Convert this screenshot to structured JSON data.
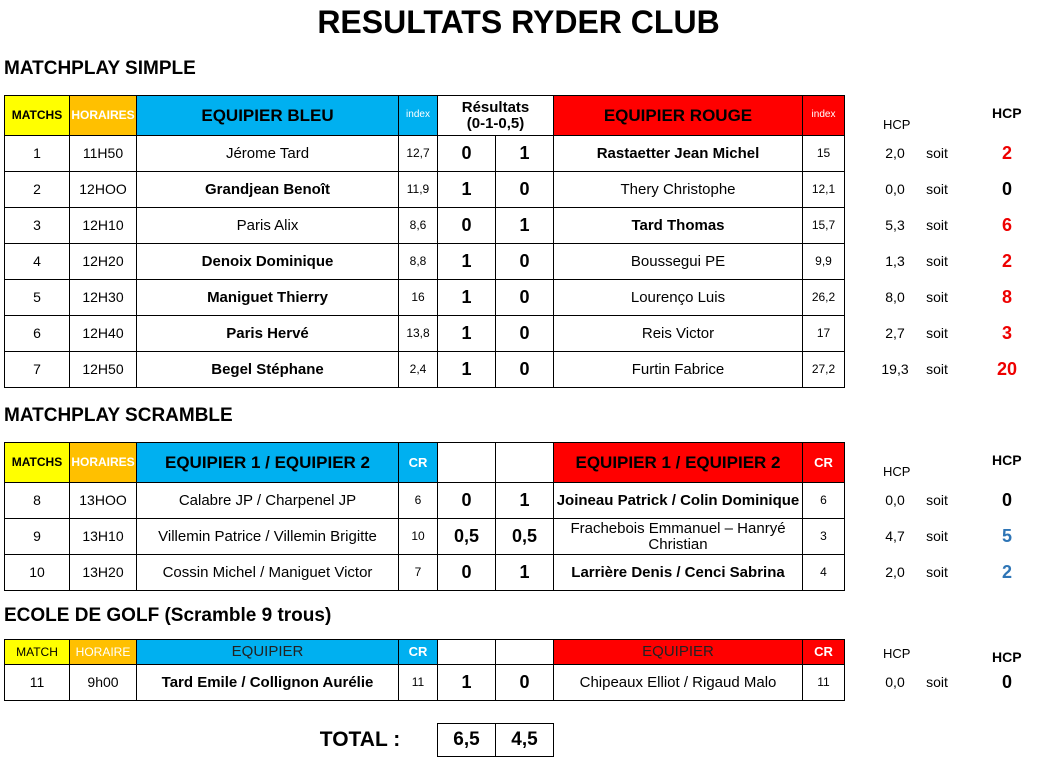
{
  "title": "RESULTATS RYDER CLUB",
  "sections": [
    {
      "title": "MATCHPLAY SIMPLE",
      "headers": {
        "match": "MATCHS",
        "time": "HORAIRES",
        "team_a": "EQUIPIER BLEU",
        "index_a": "index",
        "results": [
          "Résultats",
          "(0-1-0,5)"
        ],
        "team_b": "EQUIPIER ROUGE",
        "index_b": "index",
        "hcp": "HCP",
        "hcp_round": "HCP"
      },
      "rows": [
        [
          "1",
          "11H50",
          "Jérome Tard",
          "12,7",
          "0",
          "1",
          "Rastaetter Jean Michel",
          "15",
          "2,0",
          "soit",
          "2"
        ],
        [
          "2",
          "12HOO",
          "Grandjean Benoît",
          "11,9",
          "1",
          "0",
          "Thery Christophe",
          "12,1",
          "0,0",
          "soit",
          "0"
        ],
        [
          "3",
          "12H10",
          "Paris Alix",
          "8,6",
          "0",
          "1",
          "Tard Thomas",
          "15,7",
          "5,3",
          "soit",
          "6"
        ],
        [
          "4",
          "12H20",
          "Denoix Dominique",
          "8,8",
          "1",
          "0",
          "Boussegui  PE",
          "9,9",
          "1,3",
          "soit",
          "2"
        ],
        [
          "5",
          "12H30",
          "Maniguet Thierry",
          "16",
          "1",
          "0",
          "Lourenço Luis",
          "26,2",
          "8,0",
          "soit",
          "8"
        ],
        [
          "6",
          "12H40",
          "Paris Hervé",
          "13,8",
          "1",
          "0",
          "Reis Victor",
          "17",
          "2,7",
          "soit",
          "3"
        ],
        [
          "7",
          "12H50",
          "Begel Stéphane",
          "2,4",
          "1",
          "0",
          "Furtin Fabrice",
          "27,2",
          "19,3",
          "soit",
          "20"
        ]
      ]
    },
    {
      "title": "MATCHPLAY SCRAMBLE",
      "headers": {
        "match": "MATCHS",
        "time": "HORAIRES",
        "team_a": "EQUIPIER 1 / EQUIPIER 2",
        "index_a": "CR",
        "team_b": "EQUIPIER 1 / EQUIPIER 2",
        "index_b": "CR",
        "hcp": "HCP",
        "hcp_round": "HCP"
      },
      "rows": [
        [
          "8",
          "13HOO",
          "Calabre JP / Charpenel JP",
          "6",
          "0",
          "1",
          "Joineau Patrick / Colin Dominique",
          "6",
          "0,0",
          "soit",
          "0"
        ],
        [
          "9",
          "13H10",
          "Villemin Patrice / Villemin Brigitte",
          "10",
          "0,5",
          "0,5",
          "Frachebois Emmanuel – Hanryé Christian",
          "3",
          "4,7",
          "soit",
          "5"
        ],
        [
          "10",
          "13H20",
          "Cossin Michel / Maniguet Victor",
          "7",
          "0",
          "1",
          "Larrière Denis / Cenci Sabrina",
          "4",
          "2,0",
          "soit",
          "2"
        ]
      ]
    },
    {
      "title": "ECOLE DE GOLF (Scramble 9 trous)",
      "headers": {
        "match": "MATCH",
        "time": "HORAIRE",
        "team_a": "EQUIPIER",
        "index_a": "CR",
        "team_b": "EQUIPIER",
        "index_b": "CR",
        "hcp": "HCP",
        "hcp_round": "HCP"
      },
      "rows": [
        [
          "11",
          "9h00",
          "Tard Emile / Collignon Aurélie",
          "11",
          "1",
          "0",
          "Chipeaux Elliot / Rigaud Malo",
          "11",
          "0,0",
          "soit",
          "0"
        ]
      ]
    }
  ],
  "total": {
    "label": "TOTAL :",
    "values": [
      "6,5",
      "4,5"
    ]
  }
}
